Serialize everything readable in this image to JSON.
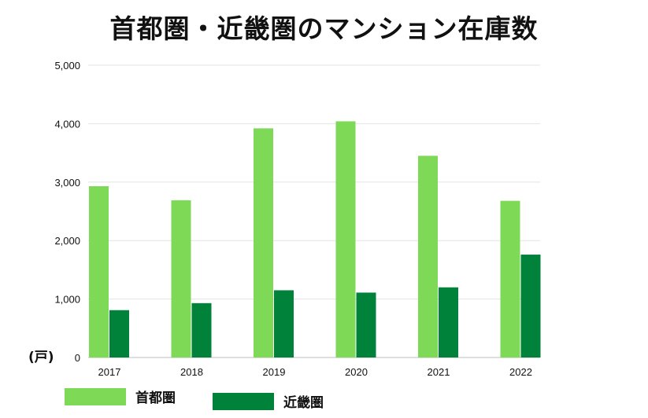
{
  "page": {
    "title": "首都圏・近畿圏のマンション在庫数",
    "unit_label": "(戸)"
  },
  "chart_data": {
    "type": "bar",
    "title": "首都圏・近畿圏のマンション在庫数",
    "xlabel": "",
    "ylabel": "(戸)",
    "categories": [
      "2017",
      "2018",
      "2019",
      "2020",
      "2021",
      "2022"
    ],
    "series": [
      {
        "name": "首都圏",
        "color": "#7ed957",
        "values": [
          2930,
          2690,
          3920,
          4040,
          3450,
          2680
        ]
      },
      {
        "name": "近畿圏",
        "color": "#00823a",
        "values": [
          810,
          930,
          1150,
          1110,
          1200,
          1760
        ]
      }
    ],
    "ylim": [
      0,
      5000
    ],
    "yticks": [
      0,
      1000,
      2000,
      3000,
      4000,
      5000
    ],
    "ytick_labels": [
      "0",
      "1,000",
      "2,000",
      "3,000",
      "4,000",
      "5,000"
    ],
    "grid": true,
    "legend_position": "bottom-left"
  }
}
